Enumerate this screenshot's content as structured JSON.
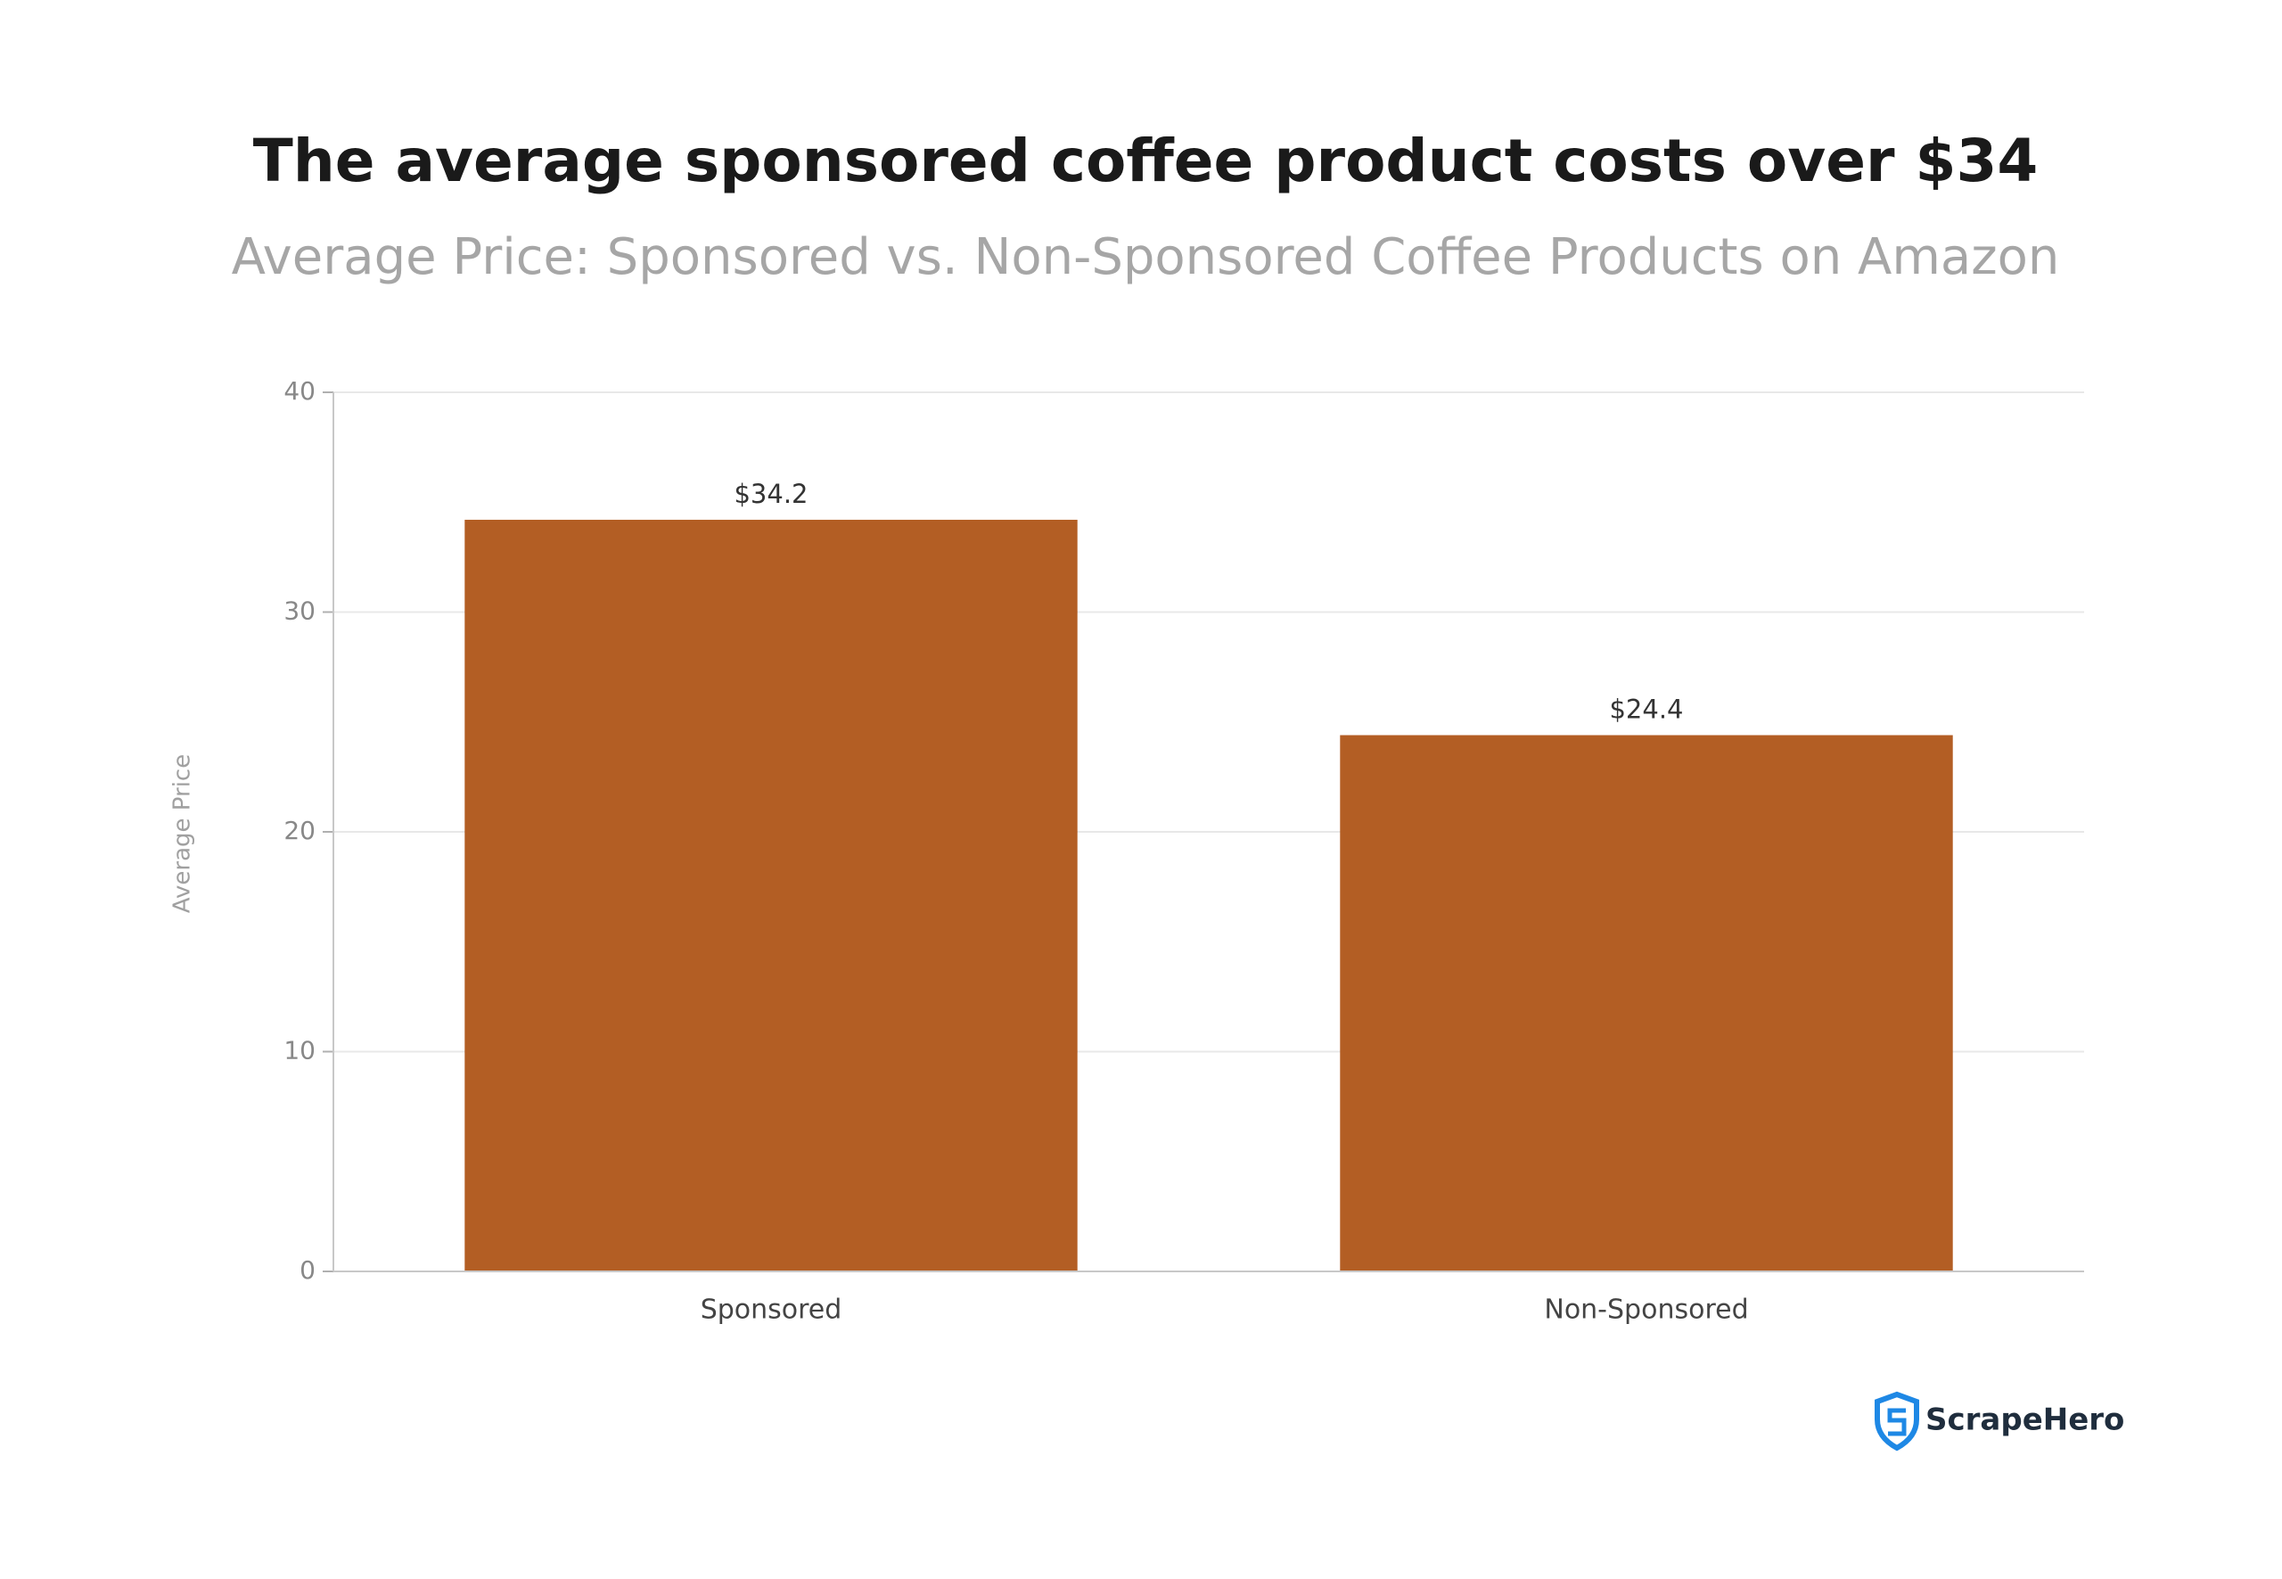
{
  "chart_data": {
    "type": "bar",
    "title": "The average sponsored coffee product costs over $34",
    "subtitle": "Average Price: Sponsored vs. Non-Sponsored Coffee Products on Amazon",
    "y_label": "Average Price",
    "categories": [
      "Sponsored",
      "Non-Sponsored"
    ],
    "values": [
      34.2,
      24.4
    ],
    "value_labels": [
      "$34.2",
      "$24.4"
    ],
    "color": "#b35e24",
    "ylim": [
      0,
      40
    ],
    "yticks": [
      0,
      10,
      20,
      30,
      40
    ],
    "grid": true,
    "brand": "ScrapeHero"
  }
}
